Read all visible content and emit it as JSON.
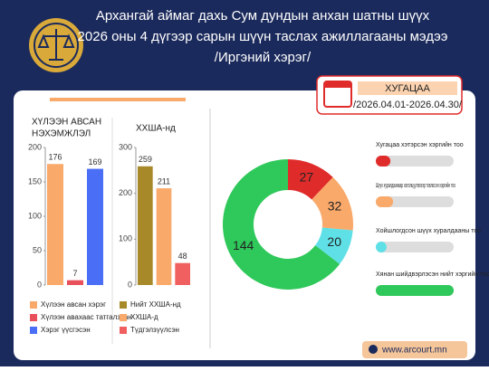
{
  "header": {
    "lines": [
      "Архангай аймаг дахь Сум дундын анхан шатны шүүх",
      "2026 оны 4 дүгээр сарын шүүн таслах ажиллагааны мэдээ",
      "/Иргэний хэрэг/"
    ]
  },
  "period": {
    "label": "ХУГАЦАА",
    "range": "/2026.04.01-2026.04.30/"
  },
  "chart_data": [
    {
      "type": "bar",
      "title": [
        "ХҮЛЭЭН АВСАН",
        "НЭХЭМЖЛЭЛ"
      ],
      "ylim": [
        0,
        200
      ],
      "yticks": [
        0,
        50,
        100,
        150,
        200
      ],
      "series": [
        {
          "name": "Хүлээн авсан хэрэг",
          "color": "#f9a96a",
          "values": [
            176
          ]
        },
        {
          "name": "Хүлээн авахаас татгалзсан",
          "color": "#e8505b",
          "values": [
            7
          ]
        },
        {
          "name": "Хэрэг үүсгэсэн",
          "color": "#4a6ef5",
          "values": [
            169
          ]
        }
      ]
    },
    {
      "type": "bar",
      "title": [
        "ХХША-нд"
      ],
      "ylim": [
        0,
        300
      ],
      "yticks": [
        0,
        100,
        200,
        300
      ],
      "series": [
        {
          "name": "Нийт ХХША-нд",
          "color": "#a8892a",
          "values": [
            259
          ]
        },
        {
          "name": "ХХША-д",
          "color": "#f9a96a",
          "values": [
            211
          ]
        },
        {
          "name": "Түдгэлзүүлсэн",
          "color": "#f06060",
          "values": [
            48
          ]
        }
      ]
    },
    {
      "type": "pie",
      "donut": true,
      "categories": [
        "Хугацаа хэтэрсэн хэргийн тоо",
        "Шүүх хуралдаанаар хэлэлцүүлэхээр товлосон хэргийн тоо",
        "Хойшлогдсон шүүх хуралдааны тоо",
        "Хянан шийдвэрлэсэн нийт хэргийн тоо"
      ],
      "values": [
        27,
        32,
        20,
        144
      ],
      "colors": [
        "#e02b2b",
        "#f9a96a",
        "#5fe0e6",
        "#2fc85a"
      ]
    }
  ],
  "footer": {
    "url": "www.arcourt.mn"
  }
}
